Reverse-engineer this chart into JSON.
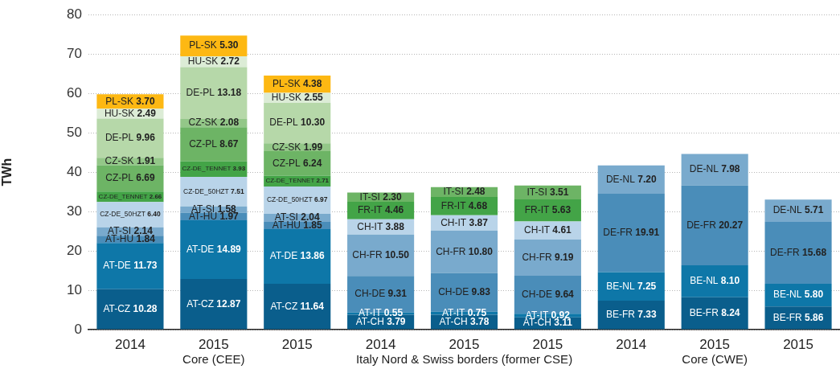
{
  "chart_data": {
    "type": "bar",
    "stacked": true,
    "ylabel": "TWh",
    "ylim": [
      0,
      80
    ],
    "yticks": [
      0,
      10,
      20,
      30,
      40,
      50,
      60,
      70,
      80
    ],
    "grid": "y",
    "categories": [
      "2014",
      "2015",
      "2015",
      "2014",
      "2015",
      "2015",
      "2014",
      "2015",
      "2015"
    ],
    "annotations": [
      "Core (CEE)",
      "Italy Nord & Swiss borders (former CSE)",
      "Core (CWE)"
    ],
    "series": [
      {
        "name": "AT-CZ",
        "color": "#0a5e8c",
        "values": [
          10.28,
          12.87,
          11.64,
          null,
          null,
          null,
          null,
          null,
          null
        ],
        "value_labels": [
          "10.28",
          "12.87",
          "11.64",
          null,
          null,
          null,
          null,
          null,
          null
        ]
      },
      {
        "name": "AT-DE",
        "color": "#0e77a8",
        "values": [
          11.73,
          14.89,
          13.86,
          null,
          null,
          null,
          null,
          null,
          null
        ],
        "value_labels": [
          "11.73",
          "14.89",
          "13.86",
          null,
          null,
          null,
          null,
          null,
          null
        ]
      },
      {
        "name": "AT-HU",
        "color": "#4a8db9",
        "values": [
          1.84,
          1.97,
          1.85,
          null,
          null,
          null,
          null,
          null,
          null
        ],
        "value_labels": [
          "1.84",
          "1.97",
          "1.85",
          null,
          null,
          null,
          null,
          null,
          null
        ]
      },
      {
        "name": "AT-SI",
        "color": "#79aacd",
        "values": [
          2.14,
          1.58,
          2.04,
          null,
          null,
          null,
          null,
          null,
          null
        ],
        "value_labels": [
          "2.14",
          "1.58",
          "2.04",
          null,
          null,
          null,
          null,
          null,
          null
        ]
      },
      {
        "name": "CZ-DE_50HZT",
        "color": "#b9d4e9",
        "values": [
          6.4,
          7.51,
          6.97,
          null,
          null,
          null,
          null,
          null,
          null
        ],
        "value_labels": [
          "6.40",
          "7.51",
          "6.97",
          null,
          null,
          null,
          null,
          null,
          null
        ]
      },
      {
        "name": "CZ-DE_TENNET",
        "color": "#43a447",
        "values": [
          2.66,
          3.93,
          2.71,
          null,
          null,
          null,
          null,
          null,
          null
        ],
        "value_labels": [
          "2.66",
          "3.93",
          "2.71",
          null,
          null,
          null,
          null,
          null,
          null
        ]
      },
      {
        "name": "CZ-PL",
        "color": "#6db465",
        "values": [
          6.69,
          8.67,
          6.24,
          null,
          null,
          null,
          null,
          null,
          null
        ],
        "value_labels": [
          "6.69",
          "8.67",
          "6.24",
          null,
          null,
          null,
          null,
          null,
          null
        ]
      },
      {
        "name": "CZ-SK",
        "color": "#93c788",
        "values": [
          1.91,
          2.08,
          1.99,
          null,
          null,
          null,
          null,
          null,
          null
        ],
        "value_labels": [
          "1.91",
          "2.08",
          "1.99",
          null,
          null,
          null,
          null,
          null,
          null
        ]
      },
      {
        "name": "DE-PL",
        "color": "#b6d8a9",
        "values": [
          9.96,
          13.18,
          10.3,
          null,
          null,
          null,
          null,
          null,
          null
        ],
        "value_labels": [
          "9.96",
          "13.18",
          "10.30",
          null,
          null,
          null,
          null,
          null,
          null
        ]
      },
      {
        "name": "HU-SK",
        "color": "#dcecd6",
        "values": [
          2.49,
          2.72,
          2.55,
          null,
          null,
          null,
          null,
          null,
          null
        ],
        "value_labels": [
          "2.49",
          "2.72",
          "2.55",
          null,
          null,
          null,
          null,
          null,
          null
        ]
      },
      {
        "name": "PL-SK",
        "color": "#fdb813",
        "values": [
          3.7,
          5.3,
          4.38,
          null,
          null,
          null,
          null,
          null,
          null
        ],
        "value_labels": [
          "3.70",
          "5.30",
          "4.38",
          null,
          null,
          null,
          null,
          null,
          null
        ]
      },
      {
        "name": "AT-CH",
        "color": "#0a5e8c",
        "values": [
          null,
          null,
          null,
          3.79,
          3.78,
          3.11,
          null,
          null,
          null
        ],
        "value_labels": [
          null,
          null,
          null,
          "3.79",
          "3.78",
          "3.11",
          null,
          null,
          null
        ]
      },
      {
        "name": "AT-IT",
        "color": "#0e77a8",
        "values": [
          null,
          null,
          null,
          0.55,
          0.75,
          0.92,
          null,
          null,
          null
        ],
        "value_labels": [
          null,
          null,
          null,
          "0.55",
          "0.75",
          "0.92",
          null,
          null,
          null
        ]
      },
      {
        "name": "CH-DE",
        "color": "#4a8db9",
        "values": [
          null,
          null,
          null,
          9.31,
          9.83,
          9.64,
          null,
          null,
          null
        ],
        "value_labels": [
          null,
          null,
          null,
          "9.31",
          "9.83",
          "9.64",
          null,
          null,
          null
        ]
      },
      {
        "name": "CH-FR",
        "color": "#79aacd",
        "values": [
          null,
          null,
          null,
          10.5,
          10.8,
          9.19,
          null,
          null,
          null
        ],
        "value_labels": [
          null,
          null,
          null,
          "10.50",
          "10.80",
          "9.19",
          null,
          null,
          null
        ]
      },
      {
        "name": "CH-IT",
        "color": "#b9d4e9",
        "values": [
          null,
          null,
          null,
          3.88,
          3.87,
          4.61,
          null,
          null,
          null
        ],
        "value_labels": [
          null,
          null,
          null,
          "3.88",
          "3.87",
          "4.61",
          null,
          null,
          null
        ]
      },
      {
        "name": "FR-IT",
        "color": "#43a447",
        "values": [
          null,
          null,
          null,
          4.46,
          4.68,
          5.63,
          null,
          null,
          null
        ],
        "value_labels": [
          null,
          null,
          null,
          "4.46",
          "4.68",
          "5.63",
          null,
          null,
          null
        ]
      },
      {
        "name": "IT-SI",
        "color": "#6db465",
        "values": [
          null,
          null,
          null,
          2.3,
          2.48,
          3.51,
          null,
          null,
          null
        ],
        "value_labels": [
          null,
          null,
          null,
          "2.30",
          "2.48",
          "3.51",
          null,
          null,
          null
        ]
      },
      {
        "name": "BE-FR",
        "color": "#0a5e8c",
        "values": [
          null,
          null,
          null,
          null,
          null,
          null,
          7.33,
          8.24,
          5.86
        ],
        "value_labels": [
          null,
          null,
          null,
          null,
          null,
          null,
          "7.33",
          "8.24",
          "5.86"
        ]
      },
      {
        "name": "BE-NL",
        "color": "#0e77a8",
        "values": [
          null,
          null,
          null,
          null,
          null,
          null,
          7.25,
          8.1,
          5.8
        ],
        "value_labels": [
          null,
          null,
          null,
          null,
          null,
          null,
          "7.25",
          "8.10",
          "5.80"
        ]
      },
      {
        "name": "DE-FR",
        "color": "#4a8db9",
        "values": [
          null,
          null,
          null,
          null,
          null,
          null,
          19.91,
          20.27,
          15.68
        ],
        "value_labels": [
          null,
          null,
          null,
          null,
          null,
          null,
          "19.91",
          "20.27",
          "15.68"
        ]
      },
      {
        "name": "DE-NL",
        "color": "#79aacd",
        "values": [
          null,
          null,
          null,
          null,
          null,
          null,
          7.2,
          7.98,
          5.71
        ],
        "value_labels": [
          null,
          null,
          null,
          null,
          null,
          null,
          "7.20",
          "7.98",
          "5.71"
        ]
      }
    ]
  }
}
